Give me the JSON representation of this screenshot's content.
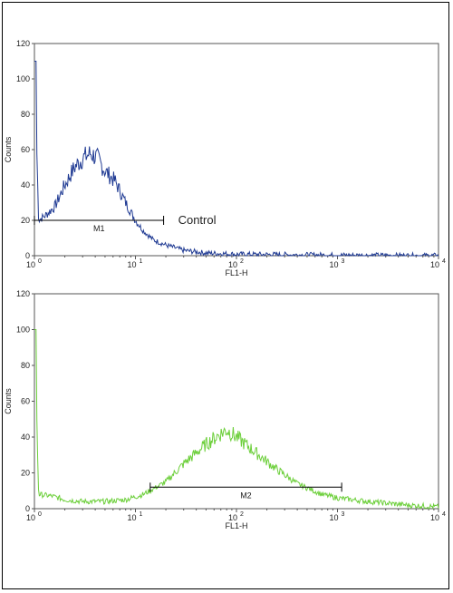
{
  "chart_data": [
    {
      "type": "histogram",
      "title": "",
      "xlabel": "FL1-H",
      "ylabel": "Counts",
      "x_scale": "log",
      "xlim": [
        1,
        10000
      ],
      "ylim": [
        0,
        120
      ],
      "y_ticks": [
        "0",
        "20",
        "40",
        "60",
        "80",
        "100",
        "120"
      ],
      "x_ticks": [
        {
          "base": "10",
          "exp": "0"
        },
        {
          "base": "10",
          "exp": "1"
        },
        {
          "base": "10",
          "exp": "2"
        },
        {
          "base": "10",
          "exp": "3"
        },
        {
          "base": "10",
          "exp": "4"
        }
      ],
      "series": [
        {
          "color": "#1f3a93",
          "points": [
            [
              1.0,
              110
            ],
            [
              1.1,
              20
            ],
            [
              1.3,
              23
            ],
            [
              1.6,
              28
            ],
            [
              2.0,
              40
            ],
            [
              2.5,
              50
            ],
            [
              3.0,
              55
            ],
            [
              3.6,
              58
            ],
            [
              4.2,
              55
            ],
            [
              5.0,
              48
            ],
            [
              6.3,
              42
            ],
            [
              8.0,
              30
            ],
            [
              10,
              20
            ],
            [
              12,
              14
            ],
            [
              15,
              9
            ],
            [
              20,
              6
            ],
            [
              30,
              3
            ],
            [
              50,
              1.5
            ],
            [
              100,
              0.8
            ],
            [
              1000,
              0.3
            ],
            [
              10000,
              0
            ]
          ]
        }
      ],
      "gate": {
        "label": "M1",
        "x_range": [
          1,
          19
        ],
        "y": 20
      },
      "annotation": "Control"
    },
    {
      "type": "histogram",
      "title": "",
      "xlabel": "FL1-H",
      "ylabel": "Counts",
      "x_scale": "log",
      "xlim": [
        1,
        10000
      ],
      "ylim": [
        0,
        120
      ],
      "y_ticks": [
        "0",
        "20",
        "40",
        "60",
        "80",
        "100",
        "120"
      ],
      "x_ticks": [
        {
          "base": "10",
          "exp": "0"
        },
        {
          "base": "10",
          "exp": "1"
        },
        {
          "base": "10",
          "exp": "2"
        },
        {
          "base": "10",
          "exp": "3"
        },
        {
          "base": "10",
          "exp": "4"
        }
      ],
      "series": [
        {
          "color": "#6ccf3a",
          "points": [
            [
              1.0,
              100
            ],
            [
              1.1,
              8
            ],
            [
              1.5,
              7
            ],
            [
              2,
              5
            ],
            [
              3,
              4
            ],
            [
              5,
              4
            ],
            [
              8,
              5
            ],
            [
              12,
              8
            ],
            [
              20,
              15
            ],
            [
              30,
              25
            ],
            [
              50,
              36
            ],
            [
              70,
              42
            ],
            [
              80,
              44
            ],
            [
              100,
              40
            ],
            [
              150,
              32
            ],
            [
              250,
              22
            ],
            [
              400,
              14
            ],
            [
              700,
              8
            ],
            [
              1000,
              6
            ],
            [
              2000,
              4
            ],
            [
              5000,
              2
            ],
            [
              10000,
              1
            ]
          ]
        }
      ],
      "gate": {
        "label": "M2",
        "x_range": [
          14,
          1100
        ],
        "y": 12
      },
      "annotation": ""
    }
  ]
}
